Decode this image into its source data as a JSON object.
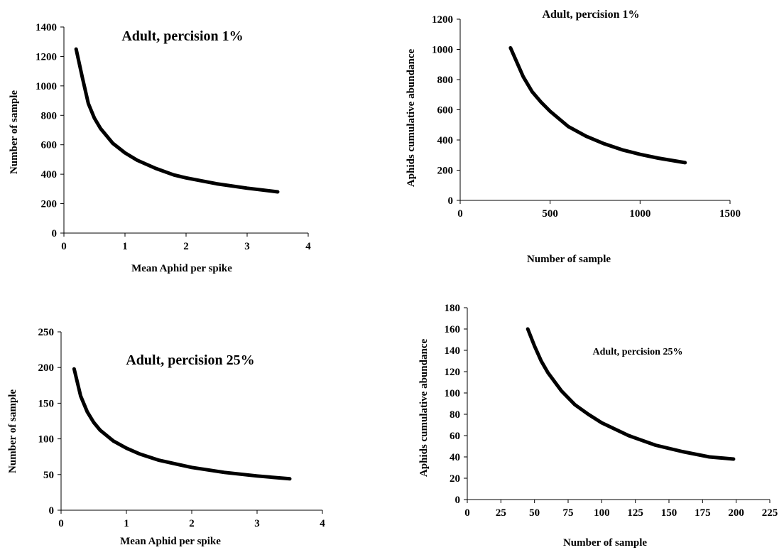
{
  "chart_data": [
    {
      "type": "line",
      "title": "Adult, percision 1%",
      "xlabel": "Mean Aphid per spike",
      "ylabel": "Number of sample",
      "xlim": [
        0,
        4
      ],
      "ylim": [
        0,
        1400
      ],
      "xticks": [
        0,
        1,
        2,
        3,
        4
      ],
      "yticks": [
        0,
        200,
        400,
        600,
        800,
        1000,
        1200,
        1400
      ],
      "grid": false,
      "legend": "none",
      "series": [
        {
          "x": [
            0.2,
            0.3,
            0.4,
            0.5,
            0.6,
            0.8,
            1.0,
            1.2,
            1.5,
            1.8,
            2.0,
            2.5,
            3.0,
            3.5
          ],
          "y": [
            1250,
            1060,
            880,
            780,
            710,
            610,
            545,
            495,
            440,
            395,
            375,
            335,
            305,
            280
          ]
        }
      ]
    },
    {
      "type": "line",
      "title": "Adult, percision 1%",
      "xlabel": "Number of sample",
      "ylabel": "Aphids cumulative abundance",
      "xlim": [
        0,
        1500
      ],
      "ylim": [
        0,
        1200
      ],
      "xticks": [
        0,
        500,
        1000,
        1500
      ],
      "yticks": [
        0,
        200,
        400,
        600,
        800,
        1000,
        1200
      ],
      "grid": false,
      "legend": "none",
      "series": [
        {
          "x": [
            280,
            350,
            400,
            450,
            500,
            600,
            700,
            800,
            900,
            1000,
            1100,
            1250
          ],
          "y": [
            1010,
            820,
            720,
            650,
            590,
            490,
            425,
            375,
            335,
            305,
            280,
            250
          ]
        }
      ]
    },
    {
      "type": "line",
      "title": "Adult, percision 25%",
      "xlabel": "Mean Aphid per spike",
      "ylabel": "Number of sample",
      "xlim": [
        0,
        4
      ],
      "ylim": [
        0,
        250
      ],
      "xticks": [
        0,
        1,
        2,
        3,
        4
      ],
      "yticks": [
        0,
        50,
        100,
        150,
        200,
        250
      ],
      "grid": false,
      "legend": "none",
      "series": [
        {
          "x": [
            0.2,
            0.3,
            0.4,
            0.5,
            0.6,
            0.8,
            1.0,
            1.2,
            1.5,
            2.0,
            2.5,
            3.0,
            3.5
          ],
          "y": [
            198,
            160,
            138,
            123,
            112,
            97,
            87,
            79,
            70,
            60,
            53,
            48,
            44
          ]
        }
      ]
    },
    {
      "type": "line",
      "title": "Adult, percision 25%",
      "xlabel": "Number of sample",
      "ylabel": "Aphids cumulative abundance",
      "xlim": [
        0,
        225
      ],
      "ylim": [
        0,
        180
      ],
      "xticks": [
        0,
        25,
        50,
        75,
        100,
        125,
        150,
        175,
        200,
        225
      ],
      "yticks": [
        0,
        20,
        40,
        60,
        80,
        100,
        120,
        140,
        160,
        180
      ],
      "grid": false,
      "legend": "none",
      "series": [
        {
          "x": [
            45,
            50,
            55,
            60,
            70,
            80,
            90,
            100,
            120,
            140,
            160,
            180,
            198
          ],
          "y": [
            160,
            144,
            130,
            119,
            102,
            89,
            80,
            72,
            60,
            51,
            45,
            40,
            38
          ]
        }
      ]
    }
  ]
}
